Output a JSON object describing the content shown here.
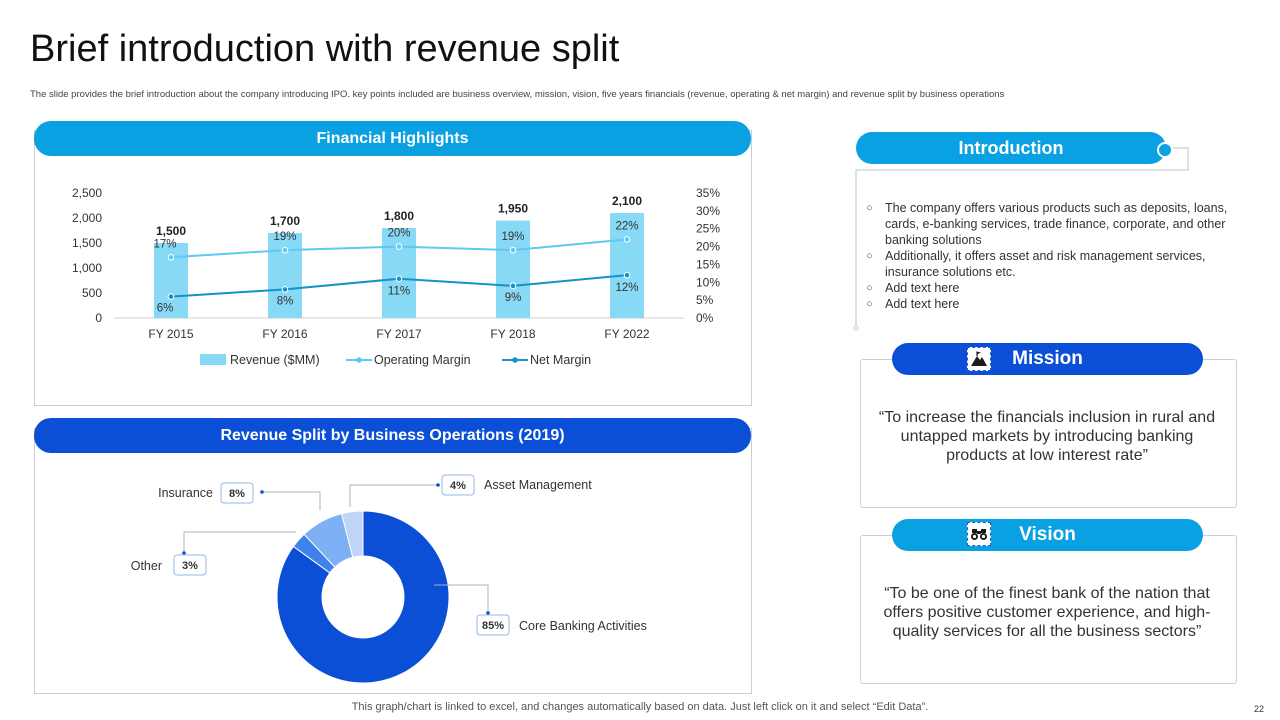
{
  "title": "Brief introduction with revenue split",
  "subtitle": "The slide provides the brief introduction about the company introducing IPO.  key points included are business overview, mission, vision, five years financials (revenue, operating & net margin) and revenue split by business operations",
  "financial": {
    "header": "Financial Highlights"
  },
  "revenue_split": {
    "header": "Revenue Split by Business Operations (2019)"
  },
  "introduction": {
    "header": "Introduction",
    "bullets": [
      "The company offers various products such as deposits, loans, cards, e-banking services, trade finance, corporate, and other banking solutions",
      "Additionally, it offers asset and risk management services, insurance solutions etc.",
      "Add text here",
      "Add text here"
    ]
  },
  "mission": {
    "header": "Mission",
    "text": "“To increase the financials inclusion in rural and untapped markets by introducing banking products at low interest rate”"
  },
  "vision": {
    "header": "Vision",
    "text": "“To be one of the finest bank of the nation that offers positive customer experience, and high-quality services for all the business sectors”"
  },
  "footer": "This graph/chart is linked to excel,  and changes automatically based on data. Just left click on it and select “Edit Data”.",
  "page_number": "22",
  "colors": {
    "light_blue": "#0aa1e2",
    "dark_blue": "#0b4fd6",
    "bar": "#88d9f6",
    "operating_line": "#5bcbef",
    "net_line": "#1592c8"
  },
  "chart_data": [
    {
      "type": "bar",
      "categories": [
        "FY 2015",
        "FY 2016",
        "FY 2017",
        "FY 2018",
        "FY 2022"
      ],
      "series": [
        {
          "name": "Revenue ($MM)",
          "type": "bar",
          "axis": "left",
          "values": [
            1500,
            1700,
            1800,
            1950,
            2100
          ],
          "labels": [
            "1,500",
            "1,700",
            "1,800",
            "1,950",
            "2,100"
          ]
        },
        {
          "name": "Operating Margin",
          "type": "line",
          "axis": "right",
          "values": [
            17,
            19,
            20,
            19,
            22
          ],
          "labels": [
            "17%",
            "19%",
            "20%",
            "19%",
            "22%"
          ]
        },
        {
          "name": "Net Margin",
          "type": "line",
          "axis": "right",
          "values": [
            6,
            8,
            11,
            9,
            12
          ],
          "labels": [
            "6%",
            "8%",
            "11%",
            "9%",
            "12%"
          ]
        }
      ],
      "ylim": [
        0,
        2500
      ],
      "yticks": [
        "0",
        "500",
        "1,000",
        "1,500",
        "2,000",
        "2,500"
      ],
      "y2lim": [
        0,
        35
      ],
      "y2ticks": [
        "0%",
        "5%",
        "10%",
        "15%",
        "20%",
        "25%",
        "30%",
        "35%"
      ],
      "legend": "bottom",
      "grid": false
    },
    {
      "type": "pie",
      "donut": true,
      "slices": [
        {
          "label": "Core Banking Activities",
          "value": 85,
          "display": "85%",
          "color": "#0b4fd6"
        },
        {
          "label": "Other",
          "value": 3,
          "display": "3%",
          "color": "#3f82ee"
        },
        {
          "label": "Insurance",
          "value": 8,
          "display": "8%",
          "color": "#7eb0f6"
        },
        {
          "label": "Asset Management",
          "value": 4,
          "display": "4%",
          "color": "#bfd4f7"
        }
      ]
    }
  ],
  "icons": {
    "mission": "mountain-flag-icon",
    "vision": "binoculars-icon"
  }
}
